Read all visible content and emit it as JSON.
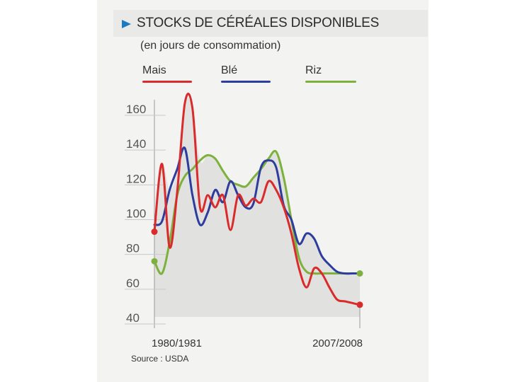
{
  "chart_data": {
    "type": "line",
    "title": "STOCKS DE CÉRÉALES DISPONIBLES",
    "subtitle": "(en jours de consommation)",
    "source": "Source : USDA",
    "x_start_label": "1980/1981",
    "x_end_label": "2007/2008",
    "x": [
      1980,
      1981,
      1982,
      1983,
      1984,
      1985,
      1986,
      1987,
      1988,
      1989,
      1990,
      1991,
      1992,
      1993,
      1994,
      1995,
      1996,
      1997,
      1998,
      1999,
      2000,
      2001,
      2002,
      2003,
      2004,
      2005,
      2006,
      2007
    ],
    "ylim": [
      40,
      160
    ],
    "yticks": [
      40,
      60,
      80,
      100,
      120,
      140,
      160
    ],
    "grid": false,
    "legend_position": "top",
    "series": [
      {
        "name": "Mais",
        "color": "#d92b2b",
        "values": [
          89,
          128,
          80,
          112,
          163,
          160,
          103,
          110,
          103,
          110,
          90,
          110,
          104,
          108,
          106,
          118,
          113,
          103,
          88,
          68,
          57,
          68,
          65,
          57,
          50,
          49,
          48,
          47
        ]
      },
      {
        "name": "Blé",
        "color": "#2d3d9e",
        "values": [
          93,
          95,
          113,
          125,
          137,
          110,
          93,
          100,
          113,
          106,
          118,
          110,
          103,
          105,
          126,
          130,
          126,
          104,
          96,
          82,
          88,
          85,
          75,
          70,
          66,
          65,
          65,
          65
        ]
      },
      {
        "name": "Riz",
        "color": "#7db13d",
        "values": [
          72,
          65,
          83,
          110,
          121,
          125,
          130,
          133,
          131,
          124,
          118,
          116,
          115,
          120,
          125,
          131,
          135,
          120,
          96,
          74,
          66,
          65,
          65,
          65,
          65,
          65,
          65,
          65
        ]
      }
    ]
  }
}
